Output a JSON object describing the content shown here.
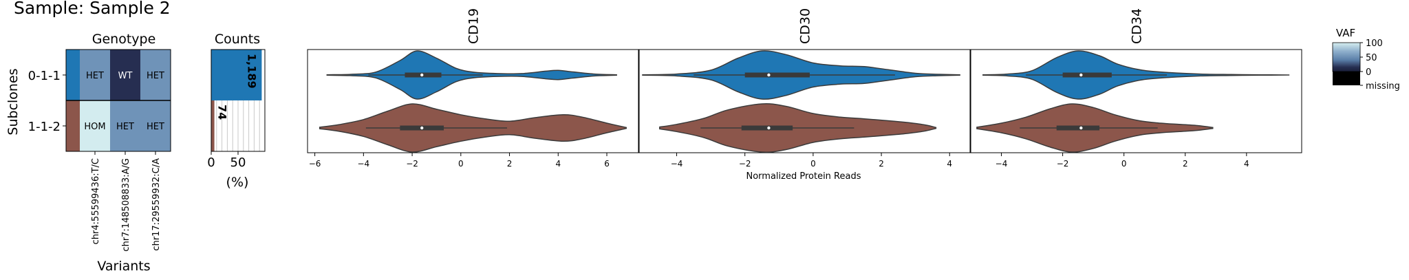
{
  "sample_title": "Sample: Sample 2",
  "colors": {
    "subclone": [
      "#1f77b4",
      "#8c564b"
    ],
    "het": "#6f93b8",
    "wt": "#262e51",
    "hom": "#d3ecef",
    "violin_edge": "#3a3a3a",
    "box": "#3a3a3a"
  },
  "genotype": {
    "title": "Genotype",
    "ylabel": "Subclones",
    "xlabel": "Variants",
    "subclones": [
      "0-1-1",
      "1-1-2"
    ],
    "variants": [
      "chr4:55599436:T/C",
      "chr7:148508833:A/G",
      "chr17:29559932:C/A"
    ],
    "cells": [
      [
        "HET",
        "WT",
        "HET"
      ],
      [
        "HOM",
        "HET",
        "HET"
      ]
    ]
  },
  "counts": {
    "title": "Counts",
    "xlabel": "(%)",
    "ticks": [
      "0",
      "50"
    ],
    "percent": [
      94.1,
      5.9
    ],
    "labels": [
      "1,189",
      "74"
    ]
  },
  "vaf_legend": {
    "title": "VAF",
    "ticks": [
      "100",
      "50",
      "0",
      "missing"
    ]
  },
  "chart_data": {
    "type": "violin",
    "xlabel": "Normalized Protein Reads",
    "categories": [
      "0-1-1",
      "1-1-2"
    ],
    "panels": [
      {
        "title": "CD19",
        "xlim": [
          -6.3,
          7.3
        ],
        "ticks": [
          -6,
          -4,
          -2,
          0,
          2,
          4,
          6
        ],
        "tick_labels": [
          "−6",
          "−4",
          "−2",
          "0",
          "2",
          "4",
          "6"
        ],
        "violins": [
          {
            "subclone": "0-1-1",
            "min": -5.5,
            "max": 6.4,
            "median": -1.6,
            "q1": -2.3,
            "q3": -0.8,
            "whisker": [
              -3.8,
              0.9
            ],
            "density": [
              [
                -5.5,
                0.01
              ],
              [
                -4.5,
                0.03
              ],
              [
                -3.5,
                0.12
              ],
              [
                -2.5,
                0.6
              ],
              [
                -1.8,
                1.0
              ],
              [
                -1.0,
                0.7
              ],
              [
                -0.2,
                0.28
              ],
              [
                0.5,
                0.12
              ],
              [
                1.5,
                0.06
              ],
              [
                2.5,
                0.06
              ],
              [
                3.5,
                0.16
              ],
              [
                4.0,
                0.19
              ],
              [
                4.6,
                0.13
              ],
              [
                5.5,
                0.04
              ],
              [
                6.4,
                0.01
              ]
            ]
          },
          {
            "subclone": "1-1-2",
            "min": -5.8,
            "max": 6.8,
            "median": -1.6,
            "q1": -2.5,
            "q3": -0.7,
            "whisker": [
              -3.9,
              1.9
            ],
            "density": [
              [
                -5.8,
                0.03
              ],
              [
                -5.0,
                0.14
              ],
              [
                -4.0,
                0.35
              ],
              [
                -3.0,
                0.7
              ],
              [
                -2.0,
                1.0
              ],
              [
                -1.0,
                0.78
              ],
              [
                0.0,
                0.55
              ],
              [
                1.0,
                0.38
              ],
              [
                2.0,
                0.28
              ],
              [
                3.0,
                0.42
              ],
              [
                4.2,
                0.55
              ],
              [
                5.0,
                0.45
              ],
              [
                6.0,
                0.2
              ],
              [
                6.8,
                0.02
              ]
            ]
          }
        ]
      },
      {
        "title": "CD30",
        "xlim": [
          -5.1,
          4.6
        ],
        "ticks": [
          -4,
          -2,
          0,
          2,
          4
        ],
        "tick_labels": [
          "−4",
          "−2",
          "0",
          "2",
          "4"
        ],
        "violins": [
          {
            "subclone": "0-1-1",
            "min": -5.0,
            "max": 4.3,
            "median": -1.3,
            "q1": -2.0,
            "q3": -0.1,
            "whisker": [
              -3.5,
              2.4
            ],
            "density": [
              [
                -5.0,
                0.01
              ],
              [
                -4.0,
                0.04
              ],
              [
                -3.0,
                0.2
              ],
              [
                -2.2,
                0.7
              ],
              [
                -1.5,
                1.0
              ],
              [
                -0.8,
                0.85
              ],
              [
                0.0,
                0.5
              ],
              [
                0.8,
                0.38
              ],
              [
                1.5,
                0.35
              ],
              [
                2.2,
                0.22
              ],
              [
                3.0,
                0.07
              ],
              [
                3.7,
                0.03
              ],
              [
                4.3,
                0.01
              ]
            ]
          },
          {
            "subclone": "1-1-2",
            "min": -4.5,
            "max": 3.6,
            "median": -1.3,
            "q1": -2.1,
            "q3": -0.6,
            "whisker": [
              -3.3,
              1.2
            ],
            "density": [
              [
                -4.5,
                0.04
              ],
              [
                -4.0,
                0.15
              ],
              [
                -3.2,
                0.4
              ],
              [
                -2.5,
                0.75
              ],
              [
                -1.5,
                1.0
              ],
              [
                -0.8,
                0.9
              ],
              [
                0.0,
                0.6
              ],
              [
                0.8,
                0.45
              ],
              [
                1.5,
                0.38
              ],
              [
                2.2,
                0.3
              ],
              [
                2.8,
                0.22
              ],
              [
                3.3,
                0.12
              ],
              [
                3.6,
                0.02
              ]
            ]
          }
        ]
      },
      {
        "title": "CD34",
        "xlim": [
          -5.0,
          5.8
        ],
        "ticks": [
          -4,
          -2,
          0,
          2,
          4
        ],
        "tick_labels": [
          "−4",
          "−2",
          "0",
          "2",
          "4"
        ],
        "violins": [
          {
            "subclone": "0-1-1",
            "min": -4.6,
            "max": 5.4,
            "median": -1.4,
            "q1": -2.0,
            "q3": -0.4,
            "whisker": [
              -3.2,
              1.4
            ],
            "density": [
              [
                -4.6,
                0.01
              ],
              [
                -3.8,
                0.04
              ],
              [
                -3.0,
                0.18
              ],
              [
                -2.2,
                0.72
              ],
              [
                -1.5,
                1.0
              ],
              [
                -0.8,
                0.8
              ],
              [
                -0.2,
                0.45
              ],
              [
                0.6,
                0.2
              ],
              [
                1.5,
                0.1
              ],
              [
                2.5,
                0.04
              ],
              [
                3.5,
                0.02
              ],
              [
                4.5,
                0.01
              ],
              [
                5.4,
                0.0
              ]
            ]
          },
          {
            "subclone": "1-1-2",
            "min": -4.8,
            "max": 2.9,
            "median": -1.4,
            "q1": -2.2,
            "q3": -0.8,
            "whisker": [
              -3.4,
              1.1
            ],
            "density": [
              [
                -4.8,
                0.03
              ],
              [
                -4.0,
                0.2
              ],
              [
                -3.2,
                0.45
              ],
              [
                -2.4,
                0.8
              ],
              [
                -1.7,
                1.0
              ],
              [
                -1.0,
                0.85
              ],
              [
                -0.3,
                0.55
              ],
              [
                0.5,
                0.3
              ],
              [
                1.2,
                0.2
              ],
              [
                1.8,
                0.15
              ],
              [
                2.4,
                0.1
              ],
              [
                2.9,
                0.02
              ]
            ]
          }
        ]
      }
    ]
  }
}
